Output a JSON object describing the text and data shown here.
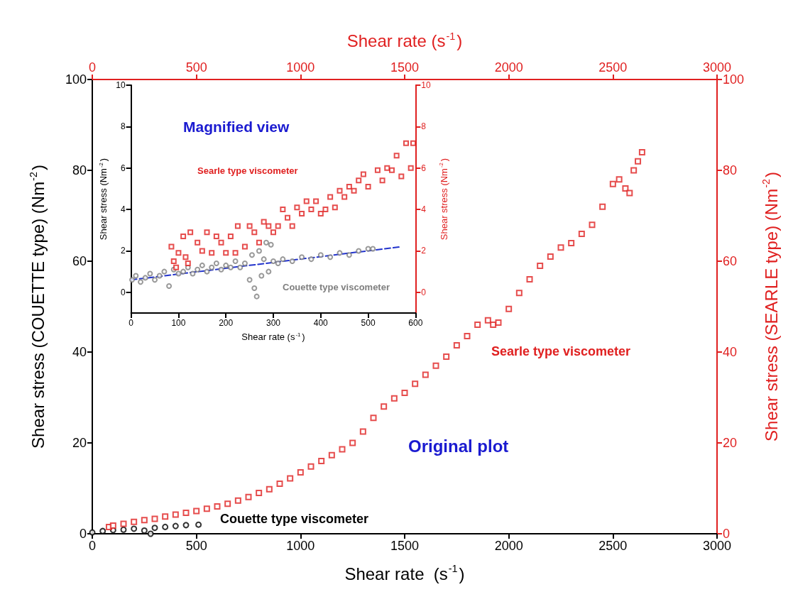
{
  "chart_data": [
    {
      "type": "scatter",
      "xlabel": "Shear rate  (s$^{-1}$)",
      "ylabel": "Shear stress (COUETTE type) (Nm$^{-2}$)",
      "y2label": "Shear stress (SEARLE type) (Nm$^{-2}$)",
      "x2label": "Shear rate (s$^{-1}$)",
      "xlim": [
        0,
        3000
      ],
      "xticks": [
        0,
        500,
        1000,
        1500,
        2000,
        2500,
        3000
      ],
      "x2lim": [
        0,
        3000
      ],
      "x2ticks": [
        0,
        500,
        1000,
        1500,
        2000,
        2500,
        3000
      ],
      "ylim": [
        0,
        100
      ],
      "yticks": [
        0,
        20,
        40,
        60,
        80,
        100
      ],
      "y2lim": [
        0,
        100
      ],
      "y2ticks": [
        0,
        20,
        40,
        60,
        80,
        100
      ],
      "annotations": [
        "Original plot"
      ],
      "series": [
        {
          "name": "Couette type viscometer",
          "color": "#000000",
          "marker": "circle",
          "x": [
            0,
            50,
            100,
            150,
            200,
            250,
            280,
            300,
            350,
            400,
            450,
            510
          ],
          "values": [
            0.3,
            0.6,
            0.8,
            0.9,
            1.1,
            0.7,
            0.0,
            1.3,
            1.5,
            1.7,
            1.9,
            2.0
          ]
        },
        {
          "name": "Searle type viscometer",
          "color": "#e02020",
          "marker": "square",
          "axis": "y2",
          "x": [
            80,
            100,
            150,
            200,
            250,
            300,
            350,
            400,
            450,
            500,
            550,
            600,
            650,
            700,
            750,
            800,
            850,
            900,
            950,
            1000,
            1050,
            1100,
            1150,
            1200,
            1250,
            1300,
            1350,
            1400,
            1450,
            1500,
            1550,
            1600,
            1650,
            1700,
            1750,
            1800,
            1850,
            1900,
            1925,
            1950,
            2000,
            2050,
            2100,
            2150,
            2200,
            2250,
            2300,
            2350,
            2400,
            2450,
            2500,
            2530,
            2560,
            2580,
            2600,
            2620,
            2640
          ],
          "values": [
            1.5,
            1.8,
            2.2,
            2.6,
            3,
            3.3,
            3.8,
            4.2,
            4.6,
            5,
            5.5,
            6,
            6.6,
            7.3,
            8.1,
            9,
            9.8,
            11,
            12.2,
            13.5,
            14.8,
            16,
            17.3,
            18.6,
            20,
            22.5,
            25.5,
            28,
            29.8,
            31,
            33,
            35,
            37,
            39,
            41.5,
            43.5,
            46,
            47,
            46,
            46.5,
            49.5,
            53,
            56,
            59,
            61,
            63,
            64,
            66,
            68,
            72,
            77,
            78,
            76,
            75,
            80,
            82,
            84
          ]
        }
      ]
    },
    {
      "type": "scatter",
      "xlabel": "Shear rate (s$^{-1}$)",
      "ylabel": "Shear stress (Nm$^{-2}$)",
      "y2label": "Shear stress (Nm$^{-2}$)",
      "xlim": [
        0,
        600
      ],
      "xticks": [
        0,
        100,
        200,
        300,
        400,
        500,
        600
      ],
      "ylim": [
        -1,
        10
      ],
      "yticks": [
        0,
        2,
        4,
        6,
        8,
        10
      ],
      "y2lim": [
        -1,
        10
      ],
      "y2ticks": [
        0,
        2,
        4,
        6,
        8,
        10
      ],
      "annotations": [
        "Magnified view"
      ],
      "series": [
        {
          "name": "Couette type viscometer",
          "color": "#7f7f7f",
          "marker": "circle",
          "x": [
            2,
            10,
            20,
            30,
            40,
            50,
            60,
            70,
            80,
            90,
            100,
            110,
            120,
            130,
            140,
            150,
            160,
            170,
            180,
            190,
            200,
            210,
            220,
            230,
            240,
            250,
            255,
            260,
            265,
            270,
            275,
            280,
            285,
            290,
            295,
            300,
            310,
            320,
            340,
            360,
            380,
            400,
            420,
            440,
            460,
            480,
            500,
            510
          ],
          "values": [
            0.6,
            0.8,
            0.5,
            0.7,
            0.9,
            0.6,
            0.8,
            1.0,
            0.3,
            1.1,
            0.9,
            1.0,
            1.2,
            0.9,
            1.1,
            1.3,
            1.0,
            1.2,
            1.4,
            1.1,
            1.3,
            1.2,
            1.5,
            1.2,
            1.4,
            0.6,
            1.8,
            0.2,
            -0.2,
            2.0,
            0.8,
            1.6,
            2.4,
            1.0,
            2.3,
            1.5,
            1.4,
            1.6,
            1.5,
            1.7,
            1.6,
            1.8,
            1.7,
            1.9,
            1.8,
            2.0,
            2.1,
            2.1
          ]
        },
        {
          "name": "Searle type viscometer",
          "color": "#e02020",
          "marker": "square",
          "axis": "y2",
          "x": [
            85,
            90,
            95,
            100,
            110,
            115,
            120,
            125,
            140,
            150,
            160,
            170,
            180,
            190,
            200,
            210,
            220,
            225,
            240,
            250,
            260,
            270,
            280,
            290,
            300,
            310,
            320,
            330,
            340,
            350,
            360,
            370,
            380,
            390,
            400,
            410,
            420,
            430,
            440,
            450,
            460,
            470,
            480,
            490,
            500,
            520,
            530,
            540,
            550,
            560,
            570,
            580,
            590,
            595
          ],
          "values": [
            2.2,
            1.5,
            1.2,
            1.9,
            2.7,
            1.7,
            1.4,
            2.9,
            2.4,
            2.0,
            2.9,
            1.9,
            2.7,
            2.4,
            1.9,
            2.7,
            1.9,
            3.2,
            2.2,
            3.2,
            2.9,
            2.4,
            3.4,
            3.2,
            2.9,
            3.2,
            4.0,
            3.6,
            3.2,
            4.1,
            3.8,
            4.4,
            4.0,
            4.4,
            3.8,
            4.0,
            4.6,
            4.1,
            4.9,
            4.6,
            5.1,
            4.9,
            5.4,
            5.7,
            5.1,
            5.9,
            5.4,
            6.0,
            5.9,
            6.6,
            5.6,
            7.2,
            6.0,
            7.2
          ]
        },
        {
          "type": "line",
          "color": "#2233cc",
          "marker": "none",
          "line_style": "dashed",
          "x": [
            0,
            570
          ],
          "values": [
            0.6,
            2.2
          ]
        }
      ]
    }
  ]
}
